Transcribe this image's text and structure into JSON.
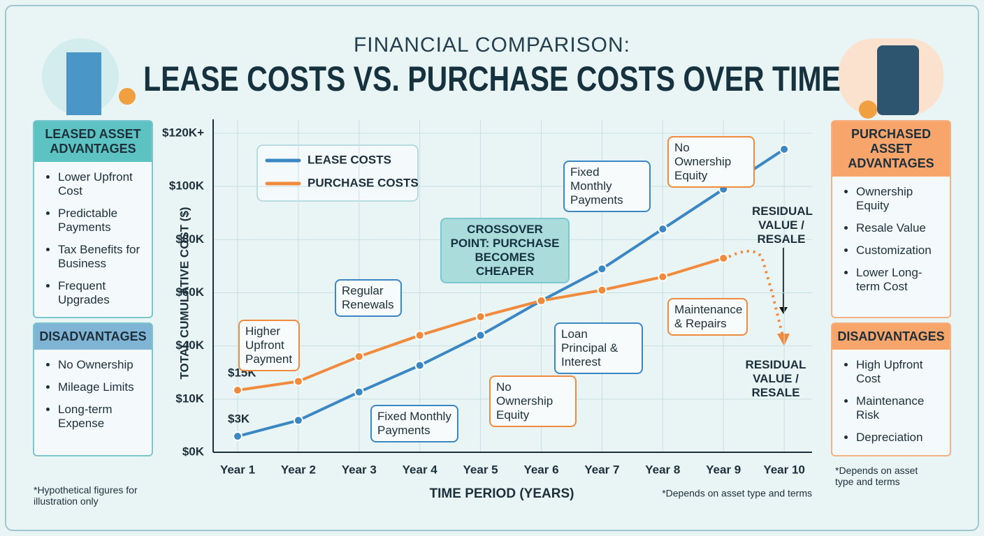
{
  "header": {
    "kicker": "FINANCIAL COMPARISON:",
    "title": "LEASE COSTS VS. PURCHASE COSTS OVER TIME"
  },
  "left_panel": {
    "advantages_title": "LEASED ASSET ADVANTAGES",
    "advantages": [
      "Lower Upfront Cost",
      "Predictable Payments",
      "Tax Benefits for Business",
      "Frequent Upgrades"
    ],
    "disadvantages_title": "DISADVANTAGES",
    "disadvantages": [
      "No Ownership",
      "Mileage Limits",
      "Long-term Expense"
    ],
    "footnote": "*Hypothetical figures for illustration only"
  },
  "right_panel": {
    "advantages_title": "PURCHASED ASSET ADVANTAGES",
    "advantages": [
      "Ownership Equity",
      "Resale Value",
      "Customization",
      "Lower Long-term Cost"
    ],
    "disadvantages_title": "DISADVANTAGES",
    "disadvantages": [
      "High Upfront Cost",
      "Maintenance Risk",
      "Depreciation"
    ],
    "footnote": "*Depends on asset type and terms"
  },
  "chart_data": {
    "type": "line",
    "x_label": "TIME PERIOD (YEARS)",
    "y_label": "TOTAL CUMULATIVE COST ($)",
    "categories": [
      "Year 1",
      "Year 2",
      "Year 3",
      "Year 4",
      "Year 5",
      "Year 6",
      "Year 7",
      "Year 8",
      "Year 9",
      "Year 10"
    ],
    "series": [
      {
        "name": "LEASE COSTS",
        "color": "#3a87c4",
        "values": [
          3,
          6,
          14,
          29,
          44,
          57,
          69,
          84,
          99,
          114
        ],
        "value_labels": [
          "$3K",
          null,
          null,
          null,
          null,
          null,
          null,
          null,
          null,
          null
        ]
      },
      {
        "name": "PURCHASE COSTS",
        "color": "#f08a3c",
        "values": [
          15,
          20,
          34,
          44,
          51,
          57,
          61,
          66,
          73,
          null
        ],
        "value_labels": [
          "$15K",
          null,
          null,
          null,
          null,
          null,
          null,
          null,
          null,
          null
        ]
      }
    ],
    "ylim": [
      0,
      120
    ],
    "yticks": [
      {
        "value": 0,
        "label": "$0K"
      },
      {
        "value": 10,
        "label": "$10K"
      },
      {
        "value": 40,
        "label": "$40K"
      },
      {
        "value": 60,
        "label": "$60K"
      },
      {
        "value": 80,
        "label": "$80K"
      },
      {
        "value": 100,
        "label": "$100K"
      },
      {
        "value": 120,
        "label": "$120K+"
      }
    ],
    "grid": true,
    "annotations": [
      "Higher Upfront Payment",
      "Regular Renewals",
      "CROSSOVER POINT: PURCHASE BECOMES CHEAPER",
      "Fixed Monthly Payments",
      "No Ownership Equity",
      "RESIDUAL VALUE / RESALE",
      "Maintenance & Repairs",
      "Loan Principal & Interest",
      "No Ownership Equity",
      "Fixed Monthly Payments",
      "RESIDUAL VALUE / RESALE"
    ],
    "footnote": "*Depends on asset type and terms"
  }
}
